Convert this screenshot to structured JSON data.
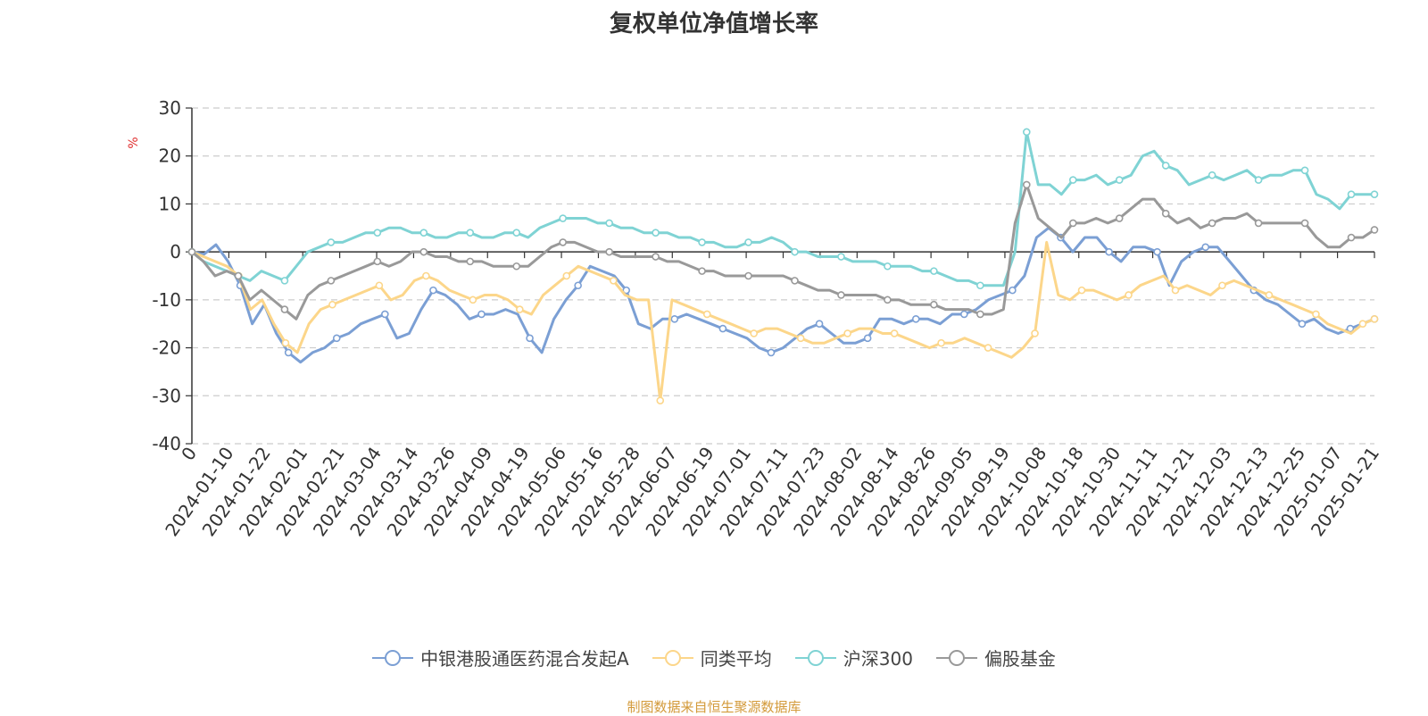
{
  "chart_data": {
    "type": "line",
    "title": "复权单位净值增长率",
    "ylabel": "%",
    "xlabel": "",
    "ylim": [
      -40,
      30
    ],
    "yticks": [
      -40,
      -30,
      -20,
      -10,
      0,
      10,
      20,
      30
    ],
    "grid": true,
    "legend_position": "bottom",
    "x_start_label": "0",
    "x_tick_labels": [
      "2024-01-10",
      "2024-01-22",
      "2024-02-01",
      "2024-02-21",
      "2024-03-04",
      "2024-03-14",
      "2024-03-26",
      "2024-04-09",
      "2024-04-19",
      "2024-05-06",
      "2024-05-16",
      "2024-05-28",
      "2024-06-07",
      "2024-06-19",
      "2024-07-01",
      "2024-07-11",
      "2024-07-23",
      "2024-08-02",
      "2024-08-14",
      "2024-08-26",
      "2024-09-05",
      "2024-09-19",
      "2024-10-08",
      "2024-10-18",
      "2024-10-30",
      "2024-11-11",
      "2024-11-21",
      "2024-12-03",
      "2024-12-13",
      "2024-12-25",
      "2025-01-07",
      "2025-01-21"
    ],
    "series": [
      {
        "name": "中银港股通医药混合发起A",
        "color": "#7b9fd4",
        "values": [
          0,
          -0.5,
          1.5,
          -2,
          -7,
          -15,
          -11,
          -17,
          -21,
          -23,
          -21,
          -20,
          -18,
          -17,
          -15,
          -14,
          -13,
          -18,
          -17,
          -12,
          -8,
          -9,
          -11,
          -14,
          -13,
          -13,
          -12,
          -13,
          -18,
          -21,
          -14,
          -10,
          -7,
          -3,
          -4,
          -5,
          -8,
          -15,
          -16,
          -14,
          -14,
          -13,
          -14,
          -15,
          -16,
          -17,
          -18,
          -20,
          -21,
          -20,
          -18,
          -16,
          -15,
          -17,
          -19,
          -19,
          -18,
          -14,
          -14,
          -15,
          -14,
          -14,
          -15,
          -13,
          -13,
          -12,
          -10,
          -9,
          -8,
          -5,
          3,
          5,
          3,
          0,
          3,
          3,
          0,
          -2,
          1,
          1,
          0,
          -7,
          -2,
          0,
          1,
          1,
          -2,
          -5,
          -8,
          -10,
          -11,
          -13,
          -15,
          -14,
          -16,
          -17,
          -16,
          -15,
          -14
        ]
      },
      {
        "name": "同类平均",
        "color": "#fcd68a",
        "values": [
          0,
          -1,
          -2,
          -3,
          -5,
          -12,
          -10,
          -15,
          -19,
          -21,
          -15,
          -12,
          -11,
          -10,
          -9,
          -8,
          -7,
          -10,
          -9,
          -6,
          -5,
          -6,
          -8,
          -9,
          -10,
          -9,
          -9,
          -10,
          -12,
          -13,
          -9,
          -7,
          -5,
          -3,
          -4,
          -5,
          -6,
          -9,
          -10,
          -10,
          -31,
          -10,
          -11,
          -12,
          -13,
          -14,
          -15,
          -16,
          -17,
          -16,
          -16,
          -17,
          -18,
          -19,
          -19,
          -18,
          -17,
          -16,
          -16,
          -17,
          -17,
          -18,
          -19,
          -20,
          -19,
          -19,
          -18,
          -19,
          -20,
          -21,
          -22,
          -20,
          -17,
          2,
          -9,
          -10,
          -8,
          -8,
          -9,
          -10,
          -9,
          -7,
          -6,
          -5,
          -8,
          -7,
          -8,
          -9,
          -7,
          -6,
          -7,
          -8,
          -9,
          -10,
          -11,
          -12,
          -13,
          -15,
          -16,
          -17,
          -15,
          -14
        ]
      },
      {
        "name": "沪深300",
        "color": "#7fd3d4",
        "values": [
          0,
          -2,
          -3,
          -4,
          -5,
          -6,
          -4,
          -5,
          -6,
          -3,
          0,
          1,
          2,
          2,
          3,
          4,
          4,
          5,
          5,
          4,
          4,
          3,
          3,
          4,
          4,
          3,
          3,
          4,
          4,
          3,
          5,
          6,
          7,
          7,
          7,
          6,
          6,
          5,
          5,
          4,
          4,
          4,
          3,
          3,
          2,
          2,
          1,
          1,
          2,
          2,
          3,
          2,
          0,
          0,
          -1,
          -1,
          -1,
          -2,
          -2,
          -2,
          -3,
          -3,
          -3,
          -4,
          -4,
          -5,
          -6,
          -6,
          -7,
          -7,
          -7,
          0,
          25,
          14,
          14,
          12,
          15,
          15,
          16,
          14,
          15,
          16,
          20,
          21,
          18,
          17,
          14,
          15,
          16,
          15,
          16,
          17,
          15,
          16,
          16,
          17,
          17,
          12,
          11,
          9,
          12,
          12,
          12
        ]
      },
      {
        "name": "偏股基金",
        "color": "#999999",
        "values": [
          0,
          -2,
          -5,
          -4,
          -5,
          -10,
          -8,
          -10,
          -12,
          -14,
          -9,
          -7,
          -6,
          -5,
          -4,
          -3,
          -2,
          -3,
          -2,
          0,
          0,
          -1,
          -1,
          -2,
          -2,
          -2,
          -3,
          -3,
          -3,
          -3,
          -1,
          1,
          2,
          2,
          1,
          0,
          0,
          -1,
          -1,
          -1,
          -1,
          -2,
          -2,
          -3,
          -4,
          -4,
          -5,
          -5,
          -5,
          -5,
          -5,
          -5,
          -6,
          -7,
          -8,
          -8,
          -9,
          -9,
          -9,
          -9,
          -10,
          -10,
          -11,
          -11,
          -11,
          -12,
          -12,
          -12,
          -13,
          -13,
          -12,
          6,
          14,
          7,
          5,
          3,
          6,
          6,
          7,
          6,
          7,
          9,
          11,
          11,
          8,
          6,
          7,
          5,
          6,
          7,
          7,
          8,
          6,
          6,
          6,
          6,
          6,
          3,
          1,
          1,
          3,
          3,
          4.6
        ]
      }
    ]
  },
  "legend": {
    "items": [
      "中银港股通医药混合发起A",
      "同类平均",
      "沪深300",
      "偏股基金"
    ]
  },
  "source_text": "制图数据来自恒生聚源数据库"
}
